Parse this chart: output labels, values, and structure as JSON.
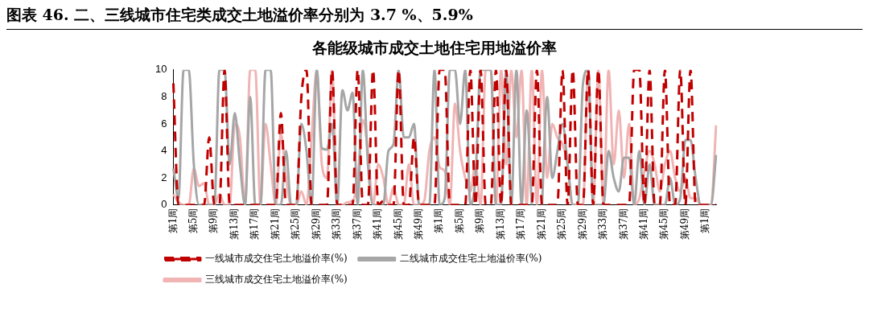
{
  "chart_data": {
    "type": "line",
    "title": "各能级城市成交土地住宅用地溢价率",
    "subtitle": "图表 46. 二、三线城市住宅类成交土地溢价率分别为 3.7 %、5.9%",
    "categories": [
      "第1周",
      null,
      null,
      null,
      "第5周",
      null,
      null,
      null,
      "第9周",
      null,
      null,
      null,
      "第13周",
      null,
      null,
      null,
      "第17周",
      null,
      null,
      null,
      "第21周",
      null,
      null,
      null,
      "第25周",
      null,
      null,
      null,
      "第29周",
      null,
      null,
      null,
      "第33周",
      null,
      null,
      null,
      "第37周",
      null,
      null,
      null,
      "第41周",
      null,
      null,
      null,
      "第45周",
      null,
      null,
      null,
      "第49周",
      null,
      null,
      null,
      "第1周",
      null,
      null,
      null,
      "第5周",
      null,
      null,
      null,
      "第9周",
      null,
      null,
      null,
      "第13周",
      null,
      null,
      null,
      "第17周",
      null,
      null,
      null,
      "第21周",
      null,
      null,
      null,
      "第25周",
      null,
      null,
      null,
      "第29周",
      null,
      null,
      null,
      "第33周",
      null,
      null,
      null,
      "第37周",
      null,
      null,
      null,
      "第41周",
      null,
      null,
      null,
      "第45周",
      null,
      null,
      null,
      "第49周",
      null,
      null,
      null,
      "第1周",
      null,
      null
    ],
    "series": [
      {
        "name": "一线城市成交住宅土地溢价率(%)",
        "color": "#c00000",
        "line_style": "dashed",
        "values": [
          9,
          0,
          0,
          0,
          0,
          0,
          0,
          5,
          0,
          0,
          10,
          0,
          0,
          0,
          0,
          0,
          0,
          0,
          0,
          0,
          0,
          6.8,
          0,
          0,
          0,
          8,
          10,
          0,
          0,
          0,
          0,
          10,
          0,
          0,
          0,
          0,
          10,
          0,
          0,
          10,
          0,
          0.3,
          0,
          0,
          10,
          0,
          0,
          5,
          0,
          0,
          0,
          0,
          10,
          10,
          0,
          0,
          0,
          0,
          10,
          0,
          10,
          0,
          0,
          10,
          0,
          10,
          0,
          0,
          0,
          0,
          0,
          10,
          0,
          0,
          0,
          0,
          10,
          0,
          10,
          0,
          0,
          10,
          0,
          10,
          0,
          0,
          0,
          0,
          0,
          0,
          10,
          10,
          0,
          10,
          0,
          0,
          10,
          0,
          0,
          10,
          0,
          10,
          0,
          0,
          0,
          0,
          0
        ]
      },
      {
        "name": "二线城市成交住宅土地溢价率(%)",
        "color": "#a6a6a6",
        "line_style": "solid",
        "values": [
          2.7,
          0.5,
          10,
          10,
          3,
          0,
          0,
          0,
          0,
          10,
          10,
          3,
          6.8,
          3,
          0,
          8,
          0,
          0,
          10,
          10,
          0,
          0,
          4,
          0,
          0,
          6,
          4,
          0,
          10,
          4.2,
          4.1,
          6,
          0,
          8.5,
          7,
          8.3,
          0,
          10,
          3,
          0,
          0,
          0,
          4,
          4.5,
          10,
          5,
          5,
          6,
          0,
          0,
          0,
          10,
          0,
          0.5,
          10,
          10,
          6,
          10,
          0,
          2,
          10,
          10,
          10,
          0,
          0,
          10,
          0,
          10,
          0,
          7,
          0,
          null,
          0,
          8,
          2,
          4,
          6,
          3,
          0,
          0,
          9,
          10,
          0,
          0,
          0,
          4,
          2,
          1,
          3.5,
          3.5,
          0,
          4,
          0,
          3,
          0,
          0,
          0,
          2,
          0,
          0.5,
          4.8,
          4.8,
          2,
          0,
          0,
          0,
          3.7
        ]
      },
      {
        "name": "三线城市成交住宅土地溢价率(%)",
        "color": "#f0b4b4",
        "line_style": "solid",
        "values": [
          0.8,
          0.2,
          0,
          0,
          2.7,
          1.4,
          1.6,
          0,
          0,
          0.8,
          0,
          0,
          6,
          5,
          0,
          10,
          10,
          0,
          6,
          3,
          0,
          5.3,
          2,
          0,
          0,
          1,
          0,
          5,
          10,
          3,
          2,
          10,
          0,
          0,
          0.2,
          0.3,
          2,
          6.3,
          4,
          0,
          3,
          2,
          0,
          1.3,
          0,
          0,
          3,
          0,
          0,
          0.3,
          4,
          5,
          2.8,
          2.5,
          0,
          7.5,
          4,
          2,
          1,
          3,
          0,
          10,
          10,
          0,
          10,
          3,
          10,
          5,
          10,
          0,
          10,
          0,
          10,
          2,
          6,
          5,
          4.5,
          3,
          0,
          0,
          0,
          10,
          0,
          10,
          0,
          10,
          3,
          7,
          2,
          6,
          0,
          0.5,
          2.5,
          4,
          3,
          1,
          3,
          4,
          2,
          1,
          2,
          0.5,
          0.5,
          0,
          0,
          0,
          5.9
        ]
      }
    ],
    "ylim": [
      0,
      10
    ],
    "yticks": [
      0,
      2,
      4,
      6,
      8,
      10
    ],
    "grid": false,
    "legend": "bottom",
    "marker": "none"
  }
}
